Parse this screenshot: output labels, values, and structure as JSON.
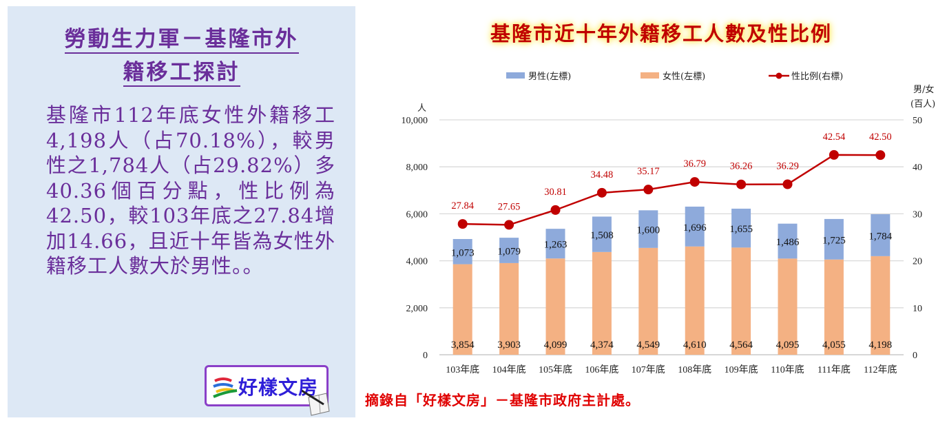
{
  "left_panel": {
    "title_line1": "勞動生力軍－基隆市外",
    "title_line2": "籍移工探討",
    "body": "基隆市112年底女性外籍移工4,198人（占70.18%），較男性之1,784人（占29.82%）多40.36個百分點，性比例為42.50，較103年底之27.84增加14.66，且近十年皆為女性外籍移工人數大於男性。。",
    "logo_text": "好樣文房"
  },
  "source_note": "摘錄自「好樣文房」－基隆市政府主計處。",
  "colors": {
    "male": "#8eaadb",
    "female": "#f4b183",
    "ratio": "#c00000",
    "panel_bg": "#dde8f5",
    "panel_text": "#6a2e9a",
    "grid": "#d9d9d9"
  },
  "chart_data": {
    "type": "bar",
    "stacked": true,
    "title": "基隆市近十年外籍移工人數及性比例",
    "categories": [
      "103年底",
      "104年底",
      "105年底",
      "106年底",
      "107年底",
      "108年底",
      "109年底",
      "110年底",
      "111年底",
      "112年底"
    ],
    "series": [
      {
        "name": "男性(左標)",
        "type": "bar",
        "axis": "left",
        "values": [
          1073,
          1079,
          1263,
          1508,
          1600,
          1696,
          1655,
          1486,
          1725,
          1784
        ]
      },
      {
        "name": "女性(左標)",
        "type": "bar",
        "axis": "left",
        "values": [
          3854,
          3903,
          4099,
          4374,
          4549,
          4610,
          4564,
          4095,
          4055,
          4198
        ]
      },
      {
        "name": "性比例(右標)",
        "type": "line",
        "axis": "right",
        "values": [
          27.84,
          27.65,
          30.81,
          34.48,
          35.17,
          36.79,
          36.26,
          36.29,
          42.54,
          42.5
        ]
      }
    ],
    "value_labels": {
      "male": [
        "1,073",
        "1,079",
        "1,263",
        "1,508",
        "1,600",
        "1,696",
        "1,655",
        "1,486",
        "1,725",
        "1,784"
      ],
      "female": [
        "3,854",
        "3,903",
        "4,099",
        "4,374",
        "4,549",
        "4,610",
        "4,564",
        "4,095",
        "4,055",
        "4,198"
      ],
      "ratio": [
        "27.84",
        "27.65",
        "30.81",
        "34.48",
        "35.17",
        "36.79",
        "36.26",
        "36.29",
        "42.54",
        "42.50"
      ]
    },
    "ylabel_left": "人",
    "ylabel_right_line1": "男/女",
    "ylabel_right_line2": "(百人)",
    "ylim_left": [
      0,
      10000
    ],
    "ylim_right": [
      0,
      50
    ],
    "yticks_left": [
      "0",
      "2,000",
      "4,000",
      "6,000",
      "8,000",
      "10,000"
    ],
    "yticks_right": [
      "0",
      "10",
      "20",
      "30",
      "40",
      "50"
    ],
    "grid": true,
    "legend_position": "top"
  }
}
